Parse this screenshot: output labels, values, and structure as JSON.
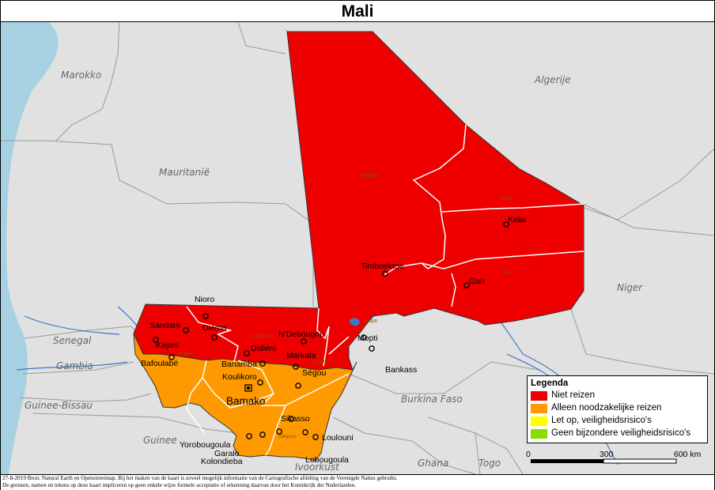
{
  "title": "Mali",
  "countries": {
    "morocco": "Marokko",
    "algeria": "Algerije",
    "mauritania": "Mauritanië",
    "niger": "Niger",
    "senegal": "Senegal",
    "gambia": "Gambia",
    "guinea_bissau": "Guinee-Bissau",
    "guinea": "Guinee",
    "burkina_faso": "Burkina Faso",
    "ivory_coast": "Ivoorkust",
    "ghana": "Ghana",
    "togo": "Togo"
  },
  "regions": {
    "timbuktu": "Timbuktu",
    "kidal": "Kidal",
    "gao": "Gao",
    "mopti": "Mopti",
    "koulikoro": "Koulikoro",
    "kayes": "Kayes",
    "segou": "Ségou",
    "sikasso": "Sikasso"
  },
  "cities": {
    "nioro": "Nioro",
    "sandare": "Sandare",
    "diema": "Diéma",
    "kayes": "Kayes",
    "bafoulabe": "Bafoulabé",
    "didieni": "Didiéni",
    "banamba": "Banamba",
    "koulikoro": "Koulikoro",
    "bamako": "Bamako",
    "ndebougou": "N'Debougou",
    "markala": "Markala",
    "segou": "Ségou",
    "mopti": "Mopti",
    "bankass": "Bankass",
    "timboektoe": "Timboektoe",
    "kidal": "Kidal",
    "gao": "Gao",
    "sikasso": "Sikasso",
    "loulouni": "Loulouni",
    "lobougoula": "Lobougoula",
    "yorobougoula": "Yorobougoula",
    "garalo": "Garalo",
    "kolondieba": "Kolondieba"
  },
  "legend": {
    "title": "Legenda",
    "items": [
      {
        "label": "Niet reizen",
        "color": "#ee0000"
      },
      {
        "label": "Alleen noodzakelijke reizen",
        "color": "#ff9900"
      },
      {
        "label": "Let op, veiligheidsrisico's",
        "color": "#ffff00"
      },
      {
        "label": "Geen bijzondere veiligheidsrisico's",
        "color": "#88dd00"
      }
    ]
  },
  "scale": {
    "start": "0",
    "mid": "300",
    "end": "600 km"
  },
  "footer": {
    "line1": "27-8-2019 Bron: Natural Earth en Openstreetmap. Bij het maken van de kaart is zoveel mogelijk informatie van de Cartografische afdeling van de Verenigde Naties gebruikt.",
    "line2": "De grenzen, namen en tekens op deze kaart impliceren op geen enkele wijze formele acceptatie of erkenning daarvan door het Koninkrijk der Nederlanden."
  },
  "colors": {
    "red": "#ee0000",
    "orange": "#ff9900",
    "land": "#e1e1e1",
    "sea": "#a7d1e3",
    "river": "#3c78c8"
  }
}
